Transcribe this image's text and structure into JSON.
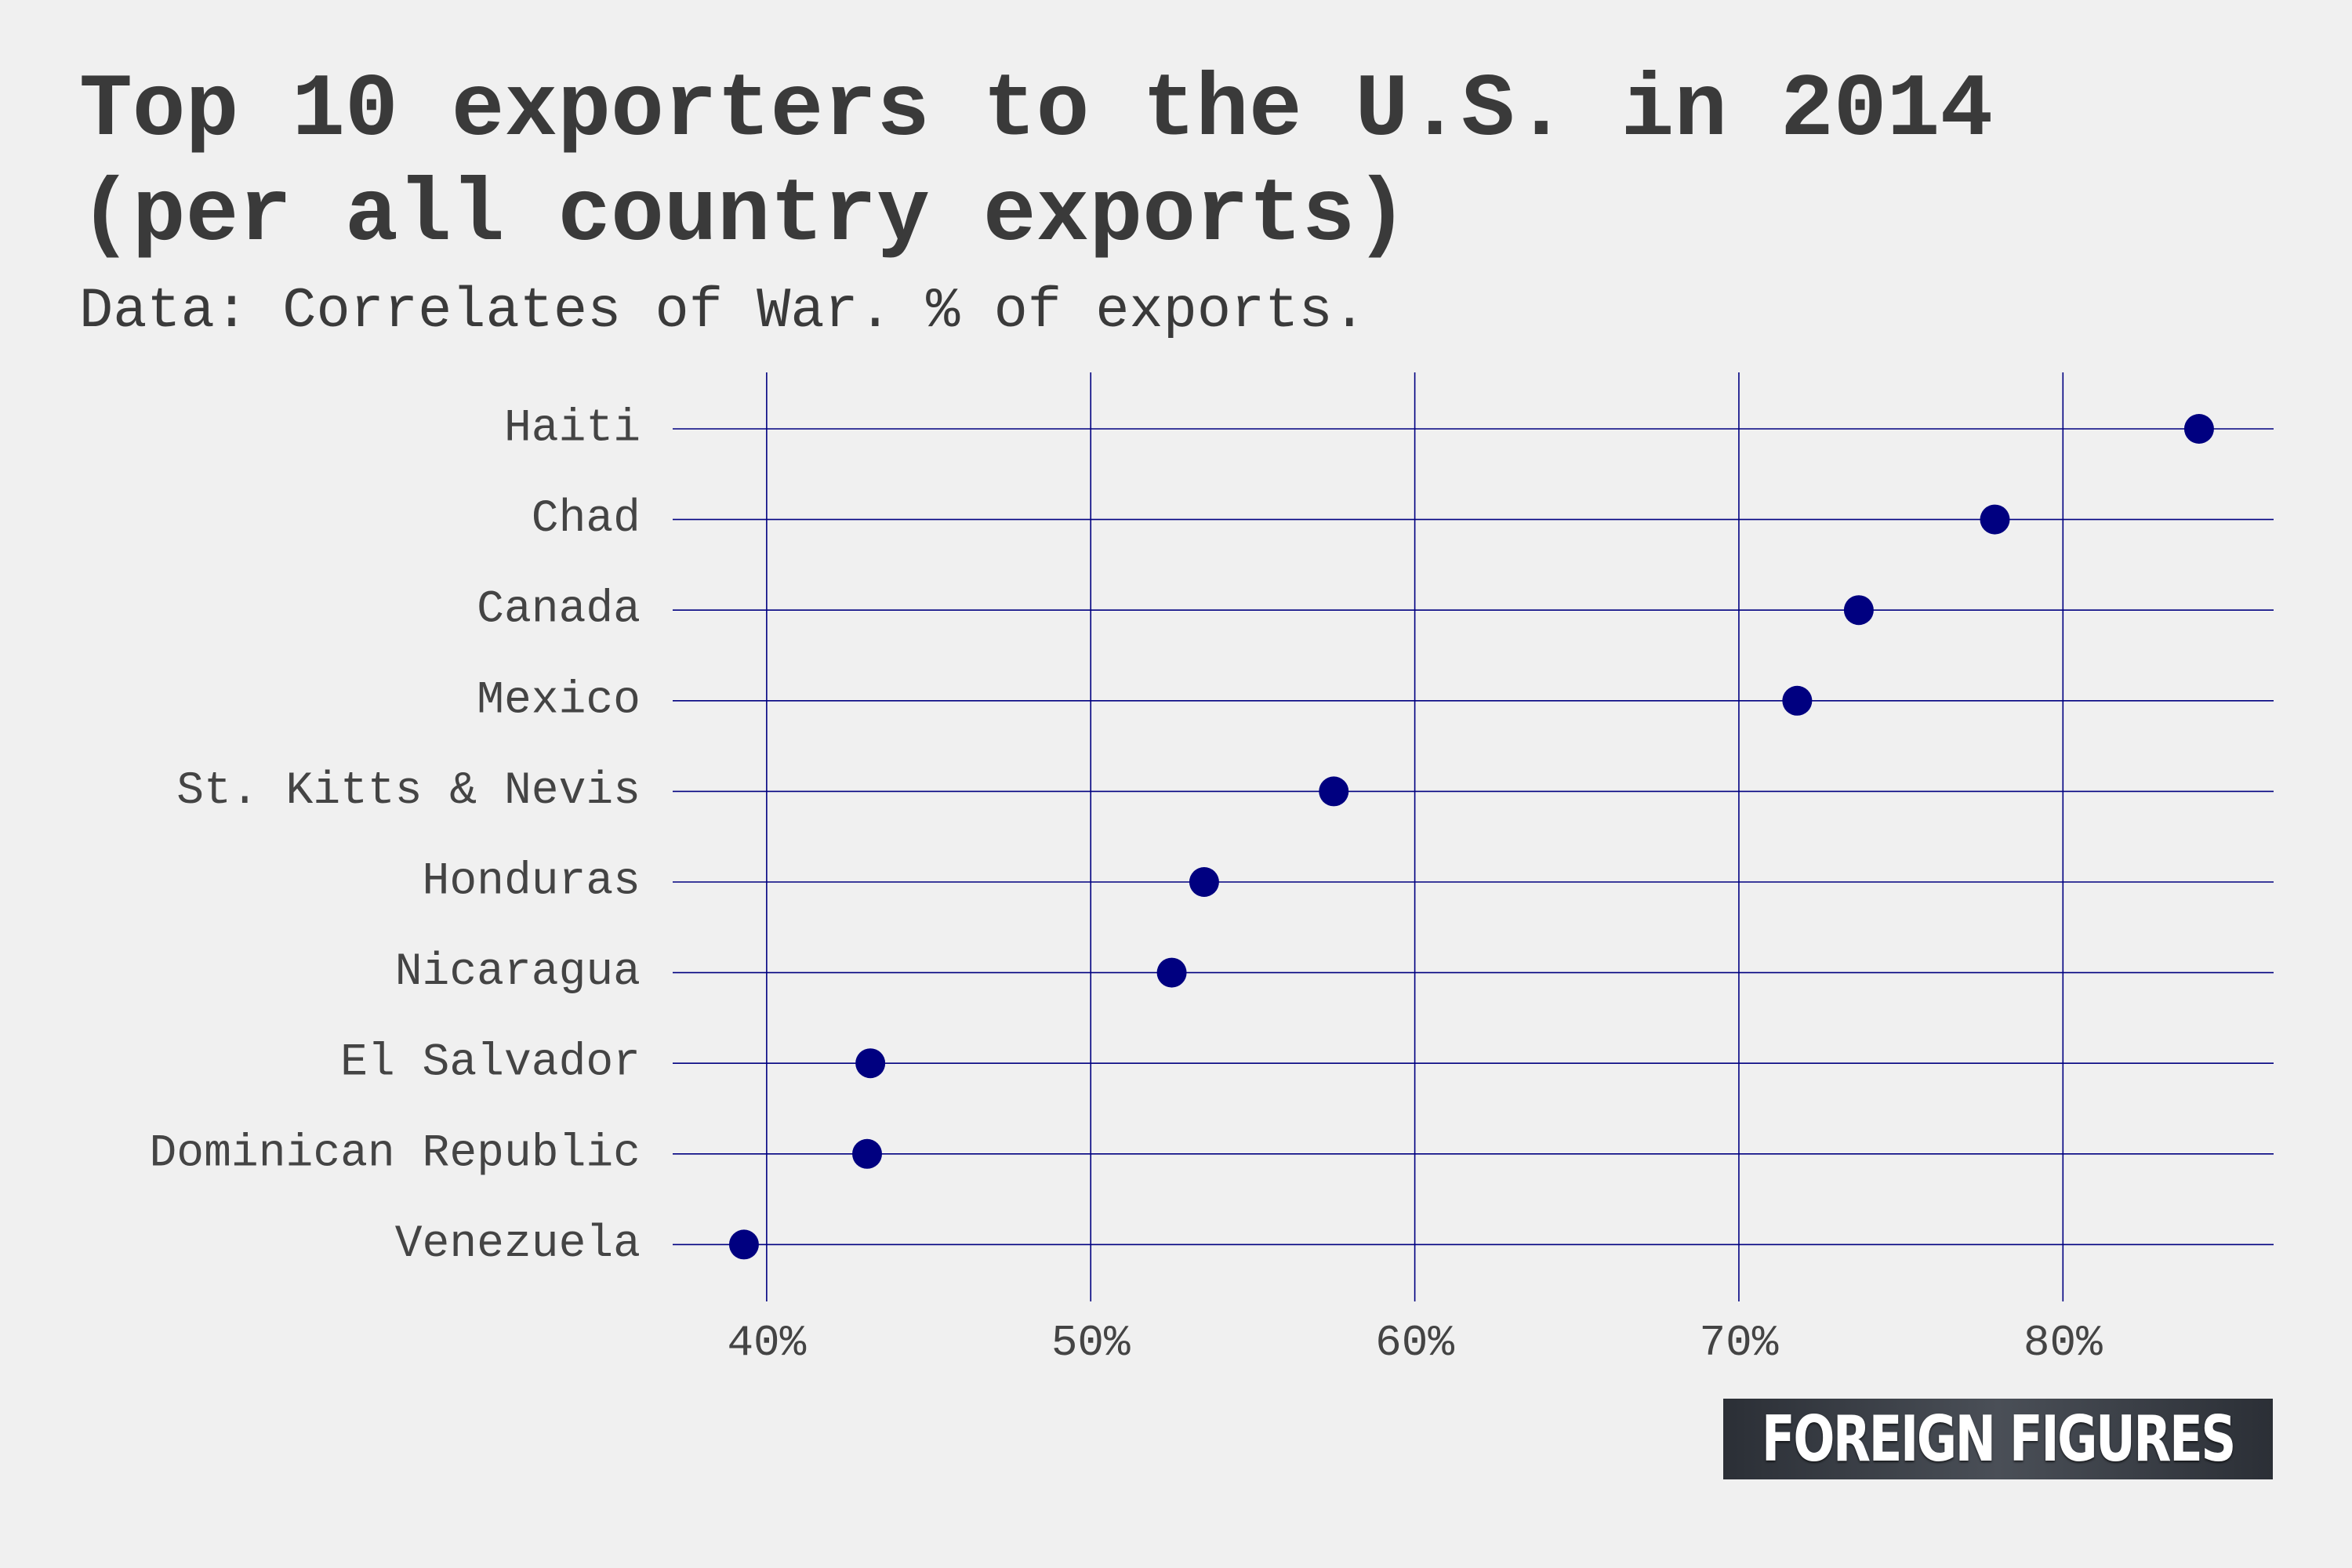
{
  "chart_data": {
    "type": "scatter",
    "title_lines": [
      "Top 10 exporters to the U.S. in 2014",
      "(per all country exports)"
    ],
    "subtitle": "Data: Correlates of War. % of exports.",
    "categories": [
      "Haiti",
      "Chad",
      "Canada",
      "Mexico",
      "St. Kitts & Nevis",
      "Honduras",
      "Nicaragua",
      "El Salvador",
      "Dominican Republic",
      "Venezuela"
    ],
    "values": [
      84.2,
      77.9,
      73.7,
      71.8,
      57.5,
      53.5,
      52.5,
      43.2,
      43.1,
      39.3
    ],
    "x_ticks": [
      40,
      50,
      60,
      70,
      80
    ],
    "x_tick_labels": [
      "40%",
      "50%",
      "60%",
      "70%",
      "80%"
    ],
    "xlim": [
      37.1,
      86.5
    ],
    "xlabel": "",
    "ylabel": "",
    "grid": true,
    "legend": "none",
    "colors": {
      "point": "#000080",
      "grid": "#000080",
      "background": "#f0f0f0",
      "text": "#3a3a3a"
    }
  },
  "logo": {
    "text": "FOREIGN FIGURES"
  }
}
